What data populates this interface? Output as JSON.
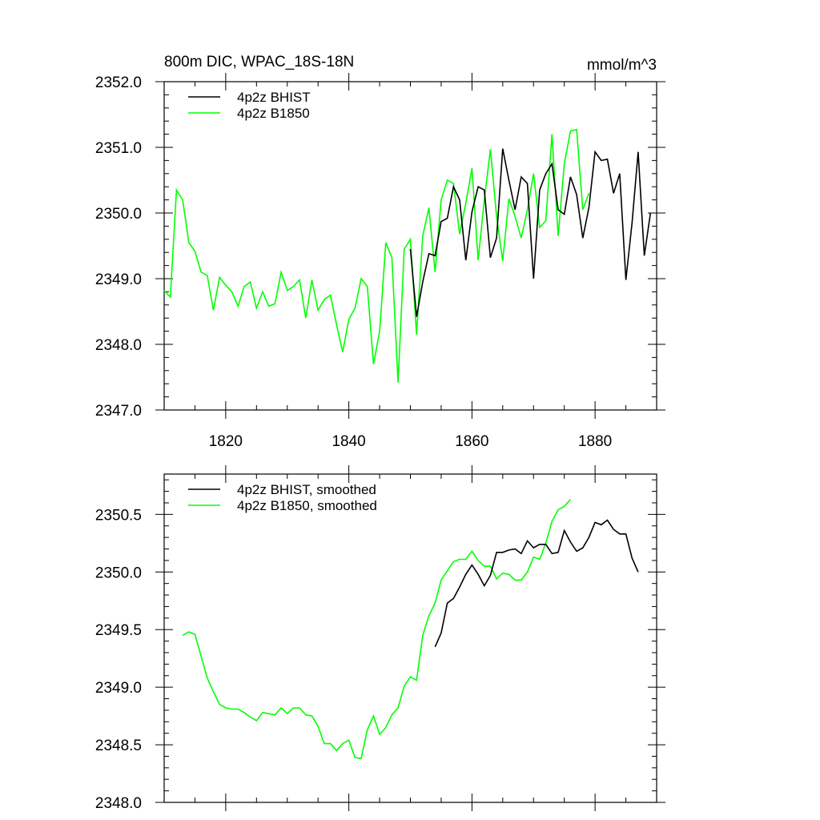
{
  "chart_data": [
    {
      "type": "line",
      "title": "800m DIC, WPAC_18S-18N",
      "units_label": "mmol/m^3",
      "xlim": [
        1810,
        1890
      ],
      "ylim": [
        2347.0,
        2352.0
      ],
      "x_ticks": [
        1820,
        1840,
        1860,
        1880
      ],
      "x_tick_labels": [
        "1820",
        "1840",
        "1860",
        "1880"
      ],
      "y_ticks": [
        2347,
        2348,
        2349,
        2350,
        2351,
        2352
      ],
      "y_tick_labels": [
        "2347.0",
        "2348.0",
        "2349.0",
        "2350.0",
        "2351.0",
        "2352.0"
      ],
      "legend_position": "top-left",
      "series": [
        {
          "name": "4p2z BHIST",
          "color": "#000000",
          "x_start": 1850,
          "values": [
            2349.45,
            2348.42,
            2348.95,
            2349.38,
            2349.35,
            2349.87,
            2349.92,
            2350.4,
            2350.2,
            2349.28,
            2350.02,
            2350.4,
            2350.35,
            2349.32,
            2349.62,
            2350.98,
            2350.5,
            2350.05,
            2350.55,
            2350.45,
            2349.0,
            2350.35,
            2350.6,
            2350.75,
            2350.05,
            2349.98,
            2350.55,
            2350.28,
            2349.62,
            2350.08,
            2350.93,
            2350.8,
            2350.82,
            2350.3,
            2350.6,
            2348.98,
            2349.85,
            2350.93,
            2349.35,
            2350.0
          ]
        },
        {
          "name": "4p2z B1850",
          "color": "#00ff00",
          "x_start": 1810,
          "values": [
            2348.82,
            2348.72,
            2350.35,
            2350.2,
            2349.55,
            2349.42,
            2349.1,
            2349.05,
            2348.52,
            2349.02,
            2348.9,
            2348.8,
            2348.58,
            2348.88,
            2348.95,
            2348.55,
            2348.8,
            2348.58,
            2348.62,
            2349.1,
            2348.82,
            2348.88,
            2348.98,
            2348.4,
            2348.98,
            2348.52,
            2348.68,
            2348.75,
            2348.3,
            2347.88,
            2348.38,
            2348.55,
            2349.0,
            2348.88,
            2347.7,
            2348.2,
            2349.55,
            2349.32,
            2347.42,
            2349.45,
            2349.6,
            2348.15,
            2349.65,
            2350.08,
            2349.1,
            2350.2,
            2350.5,
            2350.45,
            2349.68,
            2350.15,
            2350.68,
            2349.28,
            2350.2,
            2350.97,
            2349.95,
            2349.27,
            2350.22,
            2349.95,
            2349.62,
            2350.05,
            2350.6,
            2349.78,
            2349.88,
            2351.2,
            2349.65,
            2350.75,
            2351.25,
            2351.27,
            2350.05,
            2350.3
          ]
        }
      ]
    },
    {
      "type": "line",
      "title": "",
      "xlim": [
        1810,
        1890
      ],
      "ylim": [
        2348.0,
        2350.85
      ],
      "x_ticks": [
        1820,
        1840,
        1860,
        1880
      ],
      "y_ticks": [
        2348.0,
        2348.5,
        2349.0,
        2349.5,
        2350.0,
        2350.5
      ],
      "y_tick_labels": [
        "2348.0",
        "2348.5",
        "2349.0",
        "2349.5",
        "2350.0",
        "2350.5"
      ],
      "legend_position": "top-left",
      "series": [
        {
          "name": "4p2z BHIST, smoothed",
          "color": "#000000",
          "x_start": 1854,
          "values": [
            2349.35,
            2349.47,
            2349.73,
            2349.77,
            2349.87,
            2349.98,
            2350.06,
            2349.98,
            2349.88,
            2349.97,
            2350.17,
            2350.17,
            2350.19,
            2350.2,
            2350.16,
            2350.27,
            2350.21,
            2350.24,
            2350.24,
            2350.16,
            2350.17,
            2350.36,
            2350.26,
            2350.18,
            2350.21,
            2350.3,
            2350.43,
            2350.41,
            2350.45,
            2350.37,
            2350.33,
            2350.33,
            2350.12,
            2350.0
          ]
        },
        {
          "name": "4p2z B1850, smoothed",
          "color": "#00ff00",
          "x_start": 1813,
          "values": [
            2349.45,
            2349.48,
            2349.46,
            2349.27,
            2349.08,
            2348.96,
            2348.85,
            2348.82,
            2348.81,
            2348.81,
            2348.78,
            2348.74,
            2348.71,
            2348.78,
            2348.77,
            2348.76,
            2348.82,
            2348.77,
            2348.82,
            2348.82,
            2348.76,
            2348.75,
            2348.66,
            2348.51,
            2348.51,
            2348.45,
            2348.51,
            2348.54,
            2348.39,
            2348.38,
            2348.63,
            2348.75,
            2348.59,
            2348.65,
            2348.76,
            2348.82,
            2349.01,
            2349.09,
            2349.06,
            2349.45,
            2349.62,
            2349.73,
            2349.93,
            2350.01,
            2350.09,
            2350.11,
            2350.11,
            2350.18,
            2350.1,
            2350.05,
            2350.05,
            2349.94,
            2349.99,
            2349.98,
            2349.93,
            2349.93,
            2350.0,
            2350.13,
            2350.11,
            2350.25,
            2350.44,
            2350.54,
            2350.57,
            2350.63
          ]
        }
      ]
    }
  ]
}
